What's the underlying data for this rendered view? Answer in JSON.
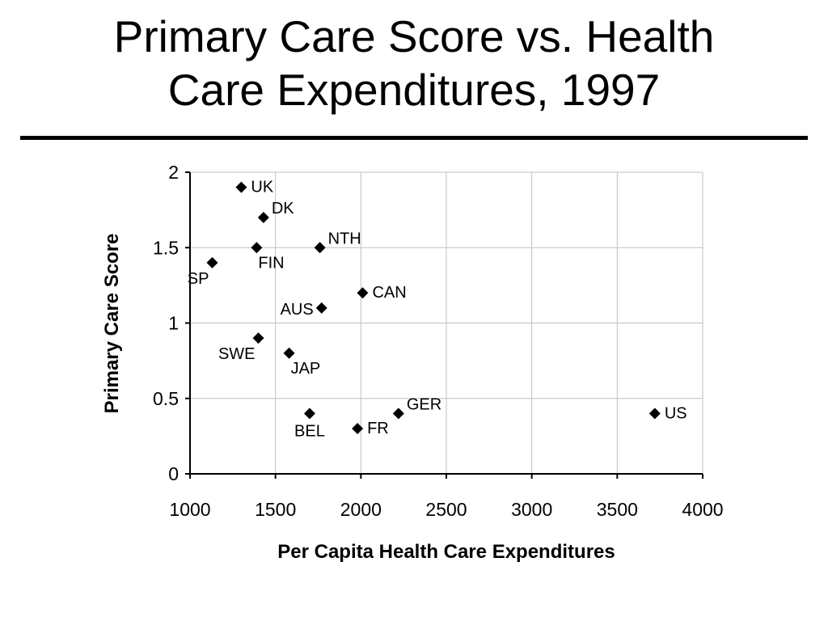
{
  "title": {
    "line1": "Primary Care Score vs. Health",
    "line2": "Care Expenditures, 1997"
  },
  "chart_data": {
    "type": "scatter",
    "title": "Primary Care Score vs. Health Care Expenditures, 1997",
    "xlabel": "Per Capita Health Care Expenditures",
    "ylabel": "Primary Care Score",
    "xlim": [
      1000,
      4000
    ],
    "ylim": [
      0,
      2
    ],
    "xticks": [
      1000,
      1500,
      2000,
      2500,
      3000,
      3500,
      4000
    ],
    "yticks": [
      0,
      0.5,
      1,
      1.5,
      2
    ],
    "ytick_labels": [
      "0",
      "0.5",
      "1",
      "1.5",
      "2"
    ],
    "grid": true,
    "marker": "diamond",
    "points": [
      {
        "label": "UK",
        "x": 1300,
        "y": 1.9,
        "label_pos": "right"
      },
      {
        "label": "DK",
        "x": 1430,
        "y": 1.7,
        "label_pos": "upper-right"
      },
      {
        "label": "NTH",
        "x": 1760,
        "y": 1.5,
        "label_pos": "upper-right"
      },
      {
        "label": "FIN",
        "x": 1390,
        "y": 1.5,
        "label_pos": "below-right"
      },
      {
        "label": "SP",
        "x": 1130,
        "y": 1.4,
        "label_pos": "below-left"
      },
      {
        "label": "CAN",
        "x": 2010,
        "y": 1.2,
        "label_pos": "right"
      },
      {
        "label": "AUS",
        "x": 1770,
        "y": 1.1,
        "label_pos": "left"
      },
      {
        "label": "SWE",
        "x": 1400,
        "y": 0.9,
        "label_pos": "below-left"
      },
      {
        "label": "JAP",
        "x": 1580,
        "y": 0.8,
        "label_pos": "below-right"
      },
      {
        "label": "GER",
        "x": 2220,
        "y": 0.4,
        "label_pos": "upper-right"
      },
      {
        "label": "US",
        "x": 3720,
        "y": 0.4,
        "label_pos": "right"
      },
      {
        "label": "BEL",
        "x": 1700,
        "y": 0.4,
        "label_pos": "below"
      },
      {
        "label": "FR",
        "x": 1980,
        "y": 0.3,
        "label_pos": "right"
      }
    ]
  },
  "colors": {
    "marker": "#000000",
    "grid": "#c0c0c0",
    "axis": "#000000",
    "background": "#ffffff"
  }
}
